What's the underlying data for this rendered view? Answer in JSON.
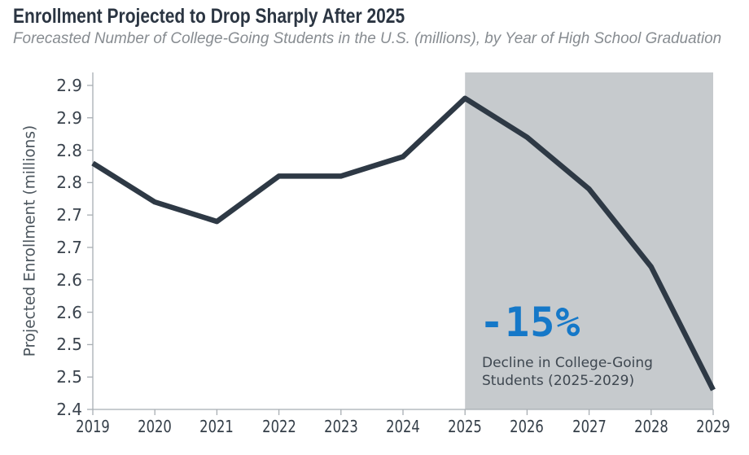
{
  "header": {
    "title": "Enrollment Projected to Drop Sharply After 2025",
    "subtitle": "Forecasted Number of College-Going Students in the U.S. (millions), by Year of High School Graduation"
  },
  "chart_data": {
    "type": "line",
    "title": "Enrollment Projected to Drop Sharply After 2025",
    "subtitle": "Forecasted Number of College-Going Students in the U.S. (millions), by Year of High School Graduation",
    "x": [
      2019,
      2020,
      2021,
      2022,
      2023,
      2024,
      2025,
      2026,
      2027,
      2028,
      2029
    ],
    "series": [
      {
        "name": "Forecasted college-going students (millions)",
        "values": [
          2.83,
          2.77,
          2.74,
          2.81,
          2.81,
          2.84,
          2.93,
          2.87,
          2.79,
          2.67,
          2.48
        ]
      }
    ],
    "xlabel": "",
    "ylabel": "Projected Enrollment (millions)",
    "ylim": [
      2.45,
      2.97
    ],
    "xlim": [
      2019,
      2029
    ],
    "xtick_labels": [
      "2019",
      "2020",
      "2021",
      "2022",
      "2023",
      "2024",
      "2025",
      "2026",
      "2027",
      "2028",
      "2029"
    ],
    "ytick_values": [
      2.45,
      2.5,
      2.55,
      2.6,
      2.65,
      2.7,
      2.75,
      2.8,
      2.85,
      2.9,
      2.95
    ],
    "ytick_labels": [
      "2.4",
      "2.5",
      "2.5",
      "2.6",
      "2.6",
      "2.7",
      "2.7",
      "2.8",
      "2.8",
      "2.9",
      "2.9"
    ],
    "grid": false,
    "legend": "none",
    "line_color": "#2e3945",
    "line_width": 6.5,
    "highlight_region": {
      "from_x": 2025,
      "to_x": 2029,
      "color": "#c6cacd",
      "meaning": "projection decline period 2025-2029"
    },
    "annotation": {
      "headline": "-15%",
      "headline_color": "#1578c8",
      "line1": "Decline in College-Going",
      "line2": "Students (2025-2029)"
    }
  },
  "colors": {
    "background": "#ffffff",
    "title_text": "#2b3542",
    "subtitle_text": "#878c91",
    "axis_spine": "#a8aeb3",
    "tick_label_text": "#3a434d",
    "y_axis_title_text": "#4a545c",
    "annotation_blue": "#1578c8",
    "annotation_body_text": "#3e4750",
    "shaded_region": "#c6cacd",
    "trend_line": "#2e3945"
  }
}
